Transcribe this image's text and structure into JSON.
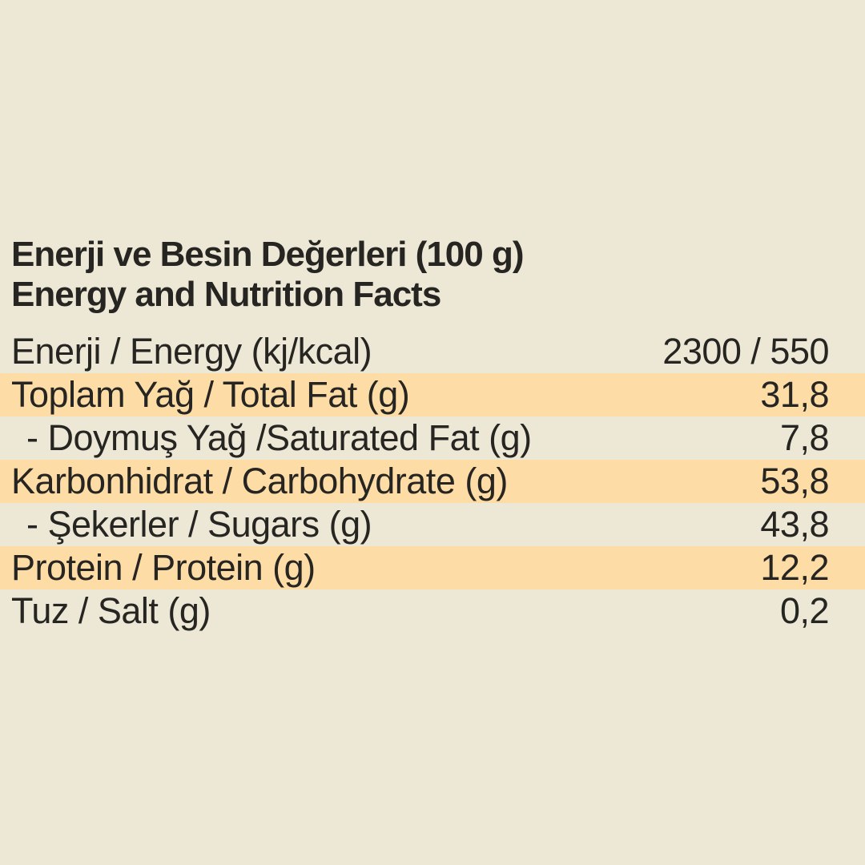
{
  "page": {
    "background_color": "#ece8d5",
    "highlight_color": "#fddca6",
    "text_color": "#262522"
  },
  "title": {
    "line1": "Enerji ve Besin Değerleri (100 g)",
    "line2": "Energy and Nutrition Facts"
  },
  "table": {
    "rows": [
      {
        "label": "Enerji / Energy (kj/kcal)",
        "value": "2300 / 550",
        "highlighted": false,
        "indent": false
      },
      {
        "label": "Toplam Yağ / Total Fat (g)",
        "value": "31,8",
        "highlighted": true,
        "indent": false
      },
      {
        "label": "- Doymuş Yağ /Saturated Fat (g)",
        "value": "7,8",
        "highlighted": false,
        "indent": true
      },
      {
        "label": "Karbonhidrat / Carbohydrate (g)",
        "value": "53,8",
        "highlighted": true,
        "indent": false
      },
      {
        "label": "- Şekerler / Sugars (g)",
        "value": "43,8",
        "highlighted": false,
        "indent": true
      },
      {
        "label": "Protein / Protein (g)",
        "value": "12,2",
        "highlighted": true,
        "indent": false
      },
      {
        "label": "Tuz / Salt (g)",
        "value": "0,2",
        "highlighted": false,
        "indent": false
      }
    ]
  }
}
